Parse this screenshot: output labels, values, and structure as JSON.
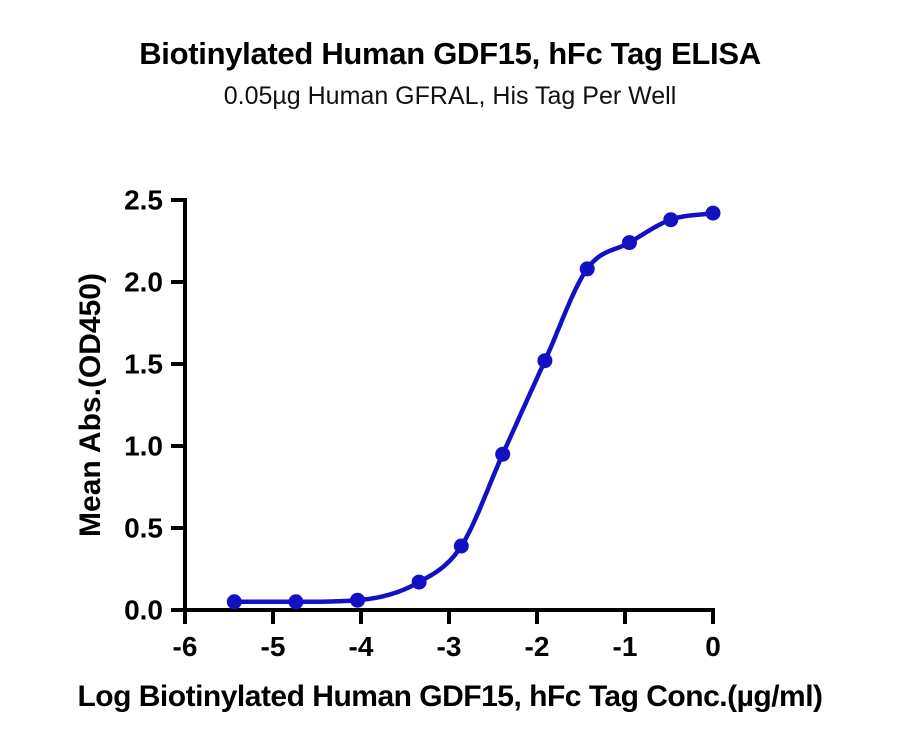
{
  "chart_data": {
    "type": "scatter",
    "title": "Biotinylated Human GDF15, hFc Tag ELISA",
    "subtitle": "0.05µg Human GFRAL, His Tag Per Well",
    "xlabel": "Log Biotinylated Human GDF15, hFc Tag Conc.(µg/ml)",
    "ylabel": "Mean Abs.(OD450)",
    "series": [
      {
        "name": "Biotinylated Human GDF15, hFc Tag",
        "x": [
          -5.44,
          -4.74,
          -4.04,
          -3.34,
          -2.86,
          -2.39,
          -1.91,
          -1.43,
          -0.95,
          -0.48,
          0
        ],
        "y": [
          0.05,
          0.05,
          0.06,
          0.17,
          0.39,
          0.95,
          1.52,
          2.08,
          2.24,
          2.38,
          2.42
        ],
        "marker": "circle",
        "curve": "smooth sigmoidal fit through points",
        "color": "#1212c4"
      }
    ],
    "xlim": [
      -6,
      0
    ],
    "ylim": [
      0,
      2.5
    ],
    "xticks": [
      -6,
      -5,
      -4,
      -3,
      -2,
      -1,
      0
    ],
    "xtick_labels": [
      "-6",
      "-5",
      "-4",
      "-3",
      "-2",
      "-1",
      "0"
    ],
    "yticks": [
      0,
      0.5,
      1,
      1.5,
      2,
      2.5
    ],
    "ytick_labels": [
      "0.0",
      "0.5",
      "1.0",
      "1.5",
      "2.0",
      "2.5"
    ],
    "grid": false,
    "legend": "none",
    "axis_color": "#000000",
    "text_color": "#000000"
  }
}
